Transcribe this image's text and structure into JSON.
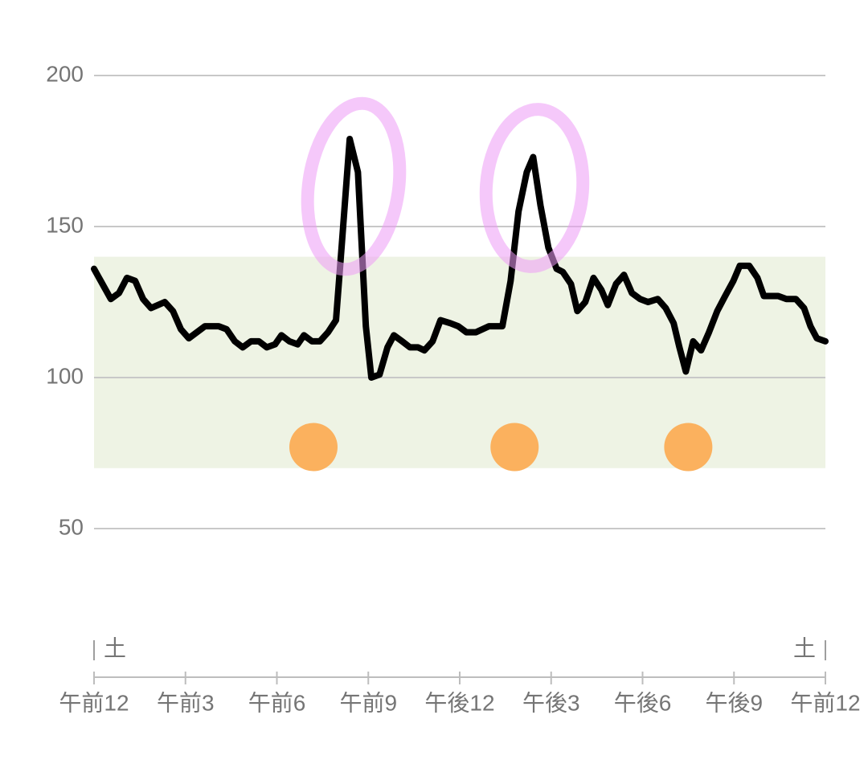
{
  "chart_data": {
    "type": "line",
    "x": [
      0,
      0.55,
      0.82,
      1.08,
      1.35,
      1.61,
      1.87,
      2.32,
      2.59,
      2.85,
      3.11,
      3.64,
      4.09,
      4.35,
      4.62,
      4.88,
      5.15,
      5.41,
      5.67,
      5.94,
      6.15,
      6.41,
      6.68,
      6.89,
      7.15,
      7.41,
      7.68,
      7.94,
      8.13,
      8.39,
      8.66,
      8.92,
      9.1,
      9.37,
      9.63,
      9.84,
      10.11,
      10.37,
      10.63,
      10.84,
      11.11,
      11.37,
      11.69,
      11.95,
      12.22,
      12.53,
      12.96,
      13.4,
      13.67,
      13.93,
      14.2,
      14.41,
      14.65,
      14.91,
      15.18,
      15.38,
      15.65,
      15.86,
      16.12,
      16.39,
      16.65,
      16.86,
      17.13,
      17.39,
      17.65,
      17.92,
      18.18,
      18.5,
      18.76,
      19.02,
      19.21,
      19.42,
      19.66,
      19.92,
      20.18,
      20.45,
      20.71,
      20.98,
      21.19,
      21.5,
      21.77,
      21.98,
      22.45,
      22.72,
      23.03,
      23.3,
      23.51,
      23.72,
      24
    ],
    "values": [
      136,
      126,
      128,
      133,
      132,
      126,
      123,
      125,
      122,
      116,
      113,
      117,
      117,
      116,
      112,
      110,
      112,
      112,
      110,
      111,
      114,
      112,
      111,
      114,
      112,
      112,
      115,
      119,
      144,
      179,
      168,
      117,
      100,
      101,
      110,
      114,
      112,
      110,
      110,
      109,
      112,
      119,
      118,
      117,
      115,
      115,
      117,
      117,
      132,
      155,
      168,
      173,
      157,
      143,
      136,
      135,
      131,
      122,
      125,
      133,
      129,
      124,
      131,
      134,
      128,
      126,
      125,
      126,
      123,
      118,
      110,
      102,
      112,
      109,
      115,
      122,
      127,
      132,
      137,
      137,
      133,
      127,
      127,
      126,
      126,
      123,
      117,
      113,
      112
    ],
    "color": "#000000",
    "xlim": [
      0,
      24
    ],
    "xticks": [
      {
        "value": 0,
        "label": "午前12"
      },
      {
        "value": 3,
        "label": "午前3"
      },
      {
        "value": 6,
        "label": "午前6"
      },
      {
        "value": 9,
        "label": "午前9"
      },
      {
        "value": 12,
        "label": "午後12"
      },
      {
        "value": 15,
        "label": "午後3"
      },
      {
        "value": 18,
        "label": "午後6"
      },
      {
        "value": 21,
        "label": "午後9"
      },
      {
        "value": 24,
        "label": "午前12"
      }
    ],
    "ylim": [
      0,
      200
    ],
    "yticks": [
      50,
      100,
      150,
      200
    ],
    "grid": true,
    "target_range": [
      70,
      140
    ],
    "target_color": "#eef3e4",
    "markers": {
      "x": [
        7.2,
        13.8,
        19.5
      ],
      "values": [
        77,
        77,
        77
      ],
      "color": "#fbb15e"
    },
    "day_labels": {
      "x": [
        0,
        24
      ],
      "labels": [
        "土",
        "土"
      ]
    }
  }
}
